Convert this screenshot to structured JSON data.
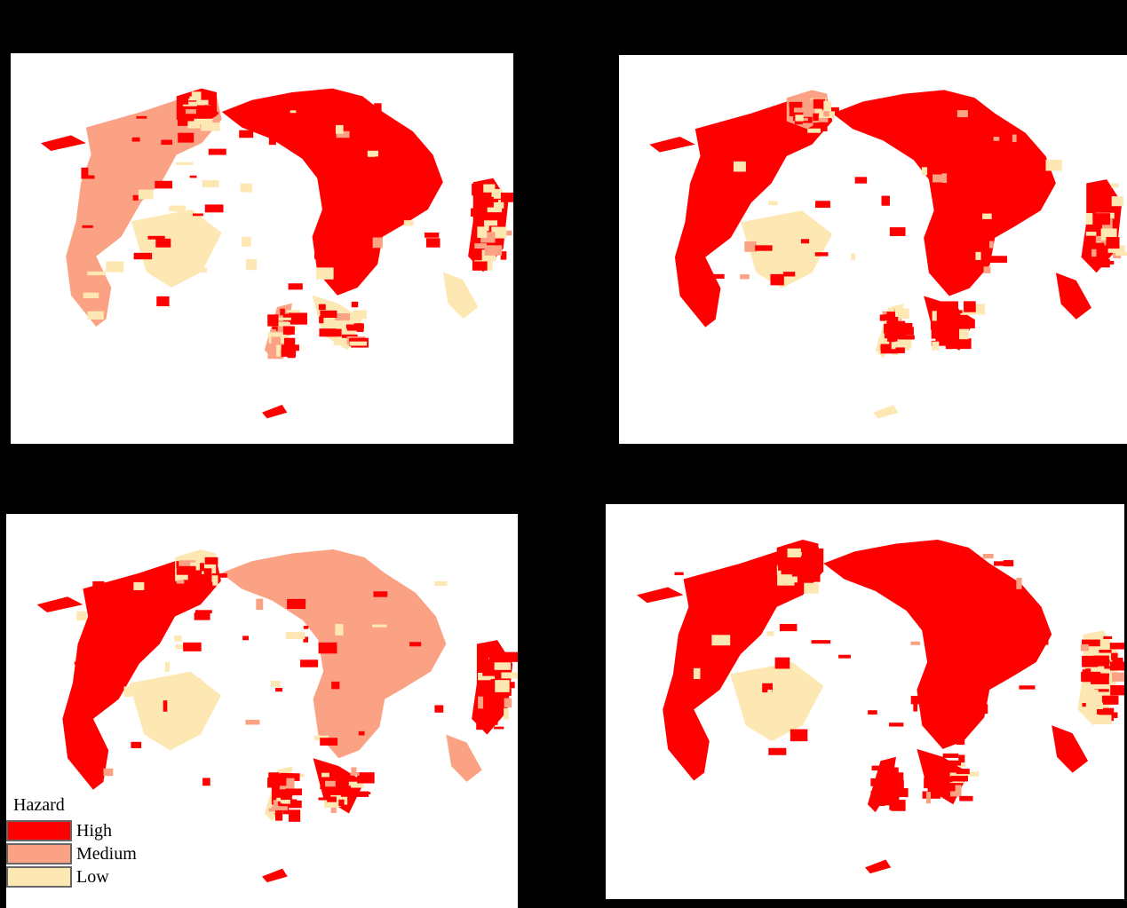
{
  "colors": {
    "high": "#ff0000",
    "medium": "#fca284",
    "low": "#fde8b4"
  },
  "panels": [
    {
      "id": "pa",
      "mix": {
        "high": 0.45,
        "medium": 0.15,
        "low": 0.4
      }
    },
    {
      "id": "pb",
      "mix": {
        "high": 0.55,
        "medium": 0.15,
        "low": 0.3
      }
    },
    {
      "id": "pc",
      "mix": {
        "high": 0.65,
        "medium": 0.1,
        "low": 0.25
      }
    },
    {
      "id": "pd",
      "mix": {
        "high": 0.8,
        "medium": 0.05,
        "low": 0.15
      }
    }
  ],
  "legend": {
    "title": "Hazard",
    "items": [
      {
        "label": "High",
        "level": "high"
      },
      {
        "label": "Medium",
        "level": "medium"
      },
      {
        "label": "Low",
        "level": "low"
      }
    ]
  }
}
